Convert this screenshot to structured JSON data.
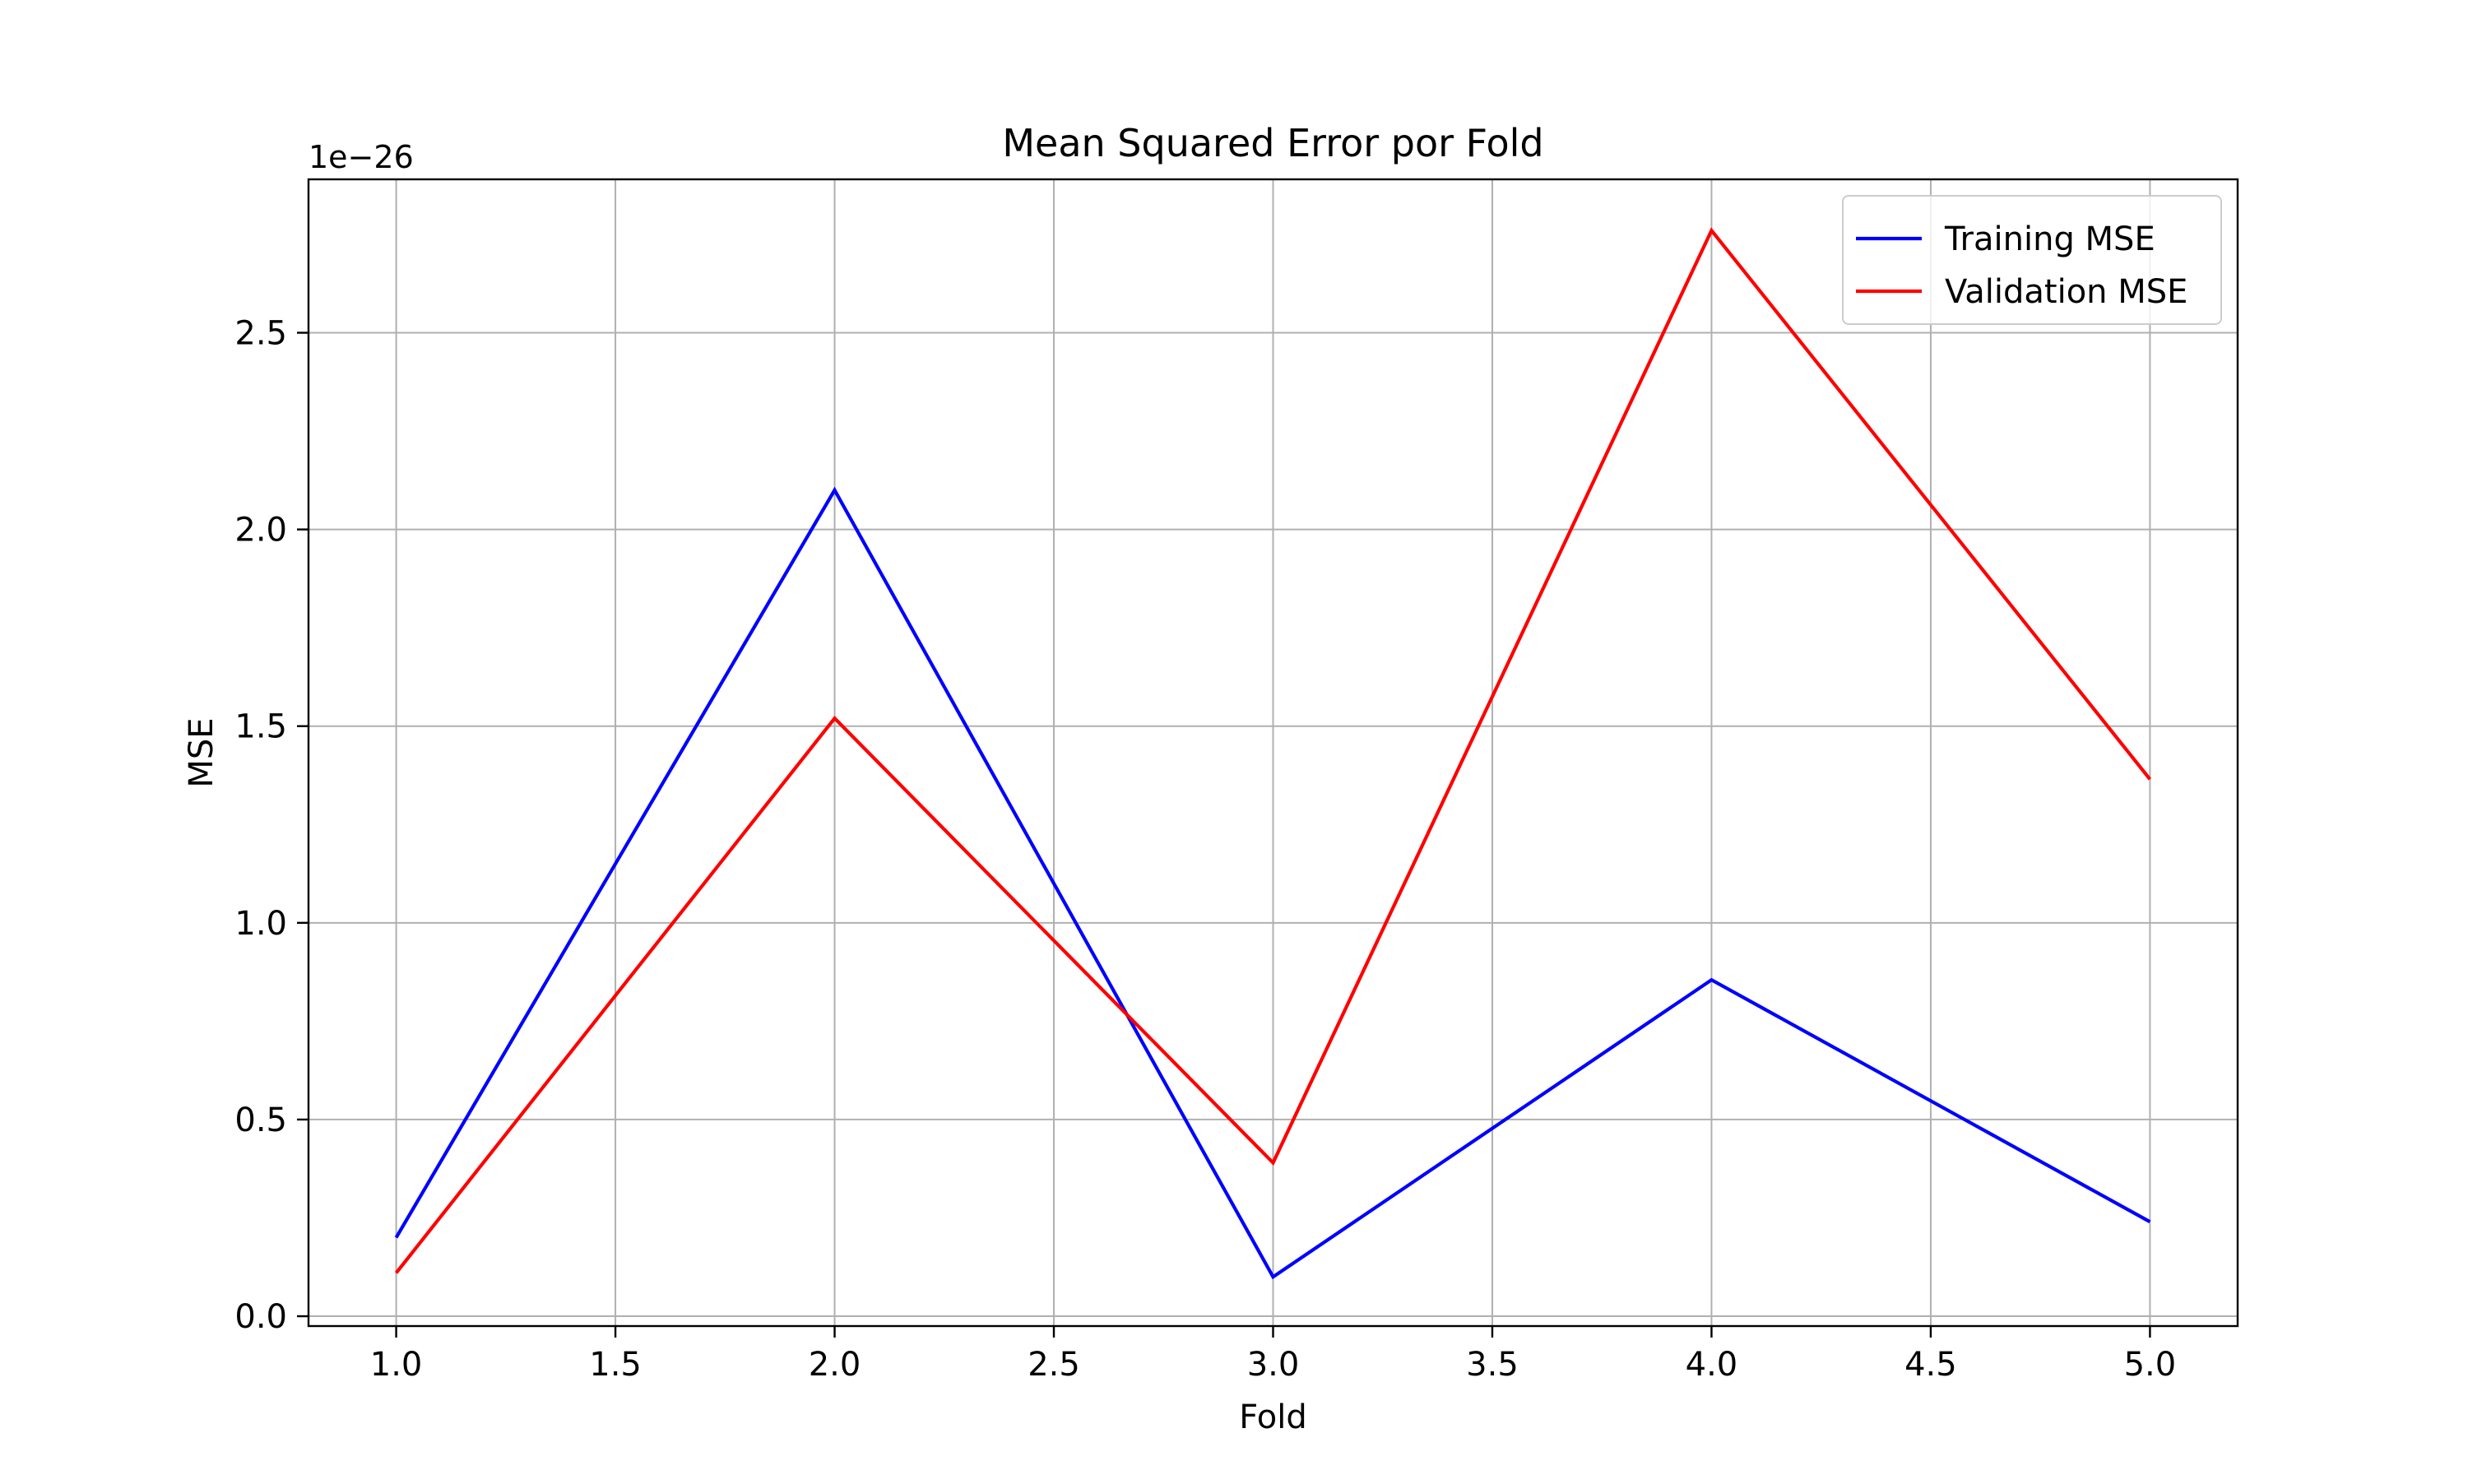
{
  "chart_data": {
    "type": "line",
    "title": "Mean Squared Error por Fold",
    "xlabel": "Fold",
    "ylabel": "MSE",
    "y_offset_label": "1e−26",
    "x": [
      1,
      2,
      3,
      4,
      5
    ],
    "series": [
      {
        "name": "Training MSE",
        "color": "#0000ff",
        "values": [
          0.2,
          2.1,
          0.1,
          0.855,
          0.24
        ]
      },
      {
        "name": "Validation MSE",
        "color": "#ff0000",
        "values": [
          0.11,
          1.52,
          0.39,
          2.76,
          1.365
        ]
      }
    ],
    "xlim": [
      0.8,
      5.2
    ],
    "ylim": [
      -0.025,
      2.89
    ],
    "xticks": [
      1.0,
      1.5,
      2.0,
      2.5,
      3.0,
      3.5,
      4.0,
      4.5,
      5.0
    ],
    "xtick_labels": [
      "1.0",
      "1.5",
      "2.0",
      "2.5",
      "3.0",
      "3.5",
      "4.0",
      "4.5",
      "5.0"
    ],
    "yticks": [
      0.0,
      0.5,
      1.0,
      1.5,
      2.0,
      2.5
    ],
    "ytick_labels": [
      "0.0",
      "0.5",
      "1.0",
      "1.5",
      "2.0",
      "2.5"
    ],
    "grid": true,
    "legend_position": "top-right"
  }
}
